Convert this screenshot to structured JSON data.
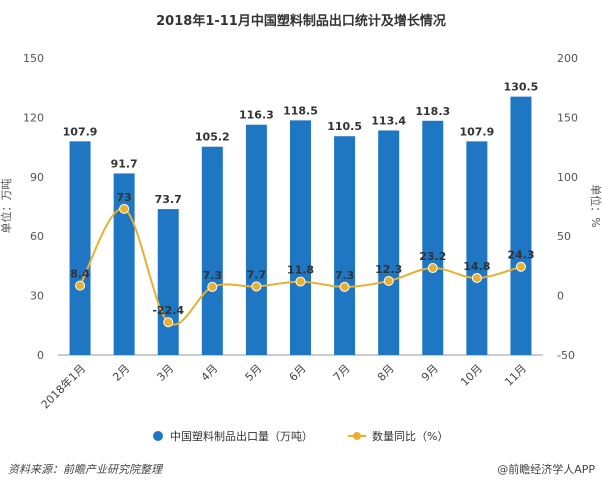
{
  "chart_data": {
    "type": "bar+line",
    "title": "2018年1-11月中国塑料制品出口统计及增长情况",
    "categories": [
      "2018年1月",
      "2月",
      "3月",
      "4月",
      "5月",
      "6月",
      "7月",
      "8月",
      "9月",
      "10月",
      "11月"
    ],
    "series": [
      {
        "name": "中国塑料制品出口量（万吨）",
        "type": "bar",
        "axis": "left",
        "color": "#1f77c4",
        "values": [
          107.9,
          91.7,
          73.7,
          105.2,
          116.3,
          118.5,
          110.5,
          113.4,
          118.3,
          107.9,
          130.5
        ],
        "labels": [
          "107.9",
          "91.7",
          "73.7",
          "105.2",
          "116.3",
          "118.5",
          "110.5",
          "113.4",
          "118.3",
          "107.9",
          "130.5"
        ]
      },
      {
        "name": "数量同比（%）",
        "type": "line",
        "axis": "right",
        "color": "#e8b030",
        "values": [
          8.4,
          73,
          -22.4,
          7.3,
          7.7,
          11.8,
          7.3,
          12.3,
          23.2,
          14.8,
          24.3
        ],
        "labels": [
          "8.4",
          "73",
          "-22.4",
          "7.3",
          "7.7",
          "11.8",
          "7.3",
          "12.3",
          "23.2",
          "14.8",
          "24.3"
        ]
      }
    ],
    "ylabel_left": "单位：万吨",
    "ylabel_right": "单位：%",
    "ylim_left": [
      0,
      150
    ],
    "yticks_left": [
      "0",
      "30",
      "60",
      "90",
      "120",
      "150"
    ],
    "ylim_right": [
      -50,
      200
    ],
    "yticks_right": [
      "-50",
      "0",
      "50",
      "100",
      "150",
      "200"
    ],
    "grid": false,
    "legend_position": "bottom"
  },
  "footer": {
    "source": "资料来源：前瞻产业研究院整理",
    "credit": "@前瞻经济学人APP"
  }
}
